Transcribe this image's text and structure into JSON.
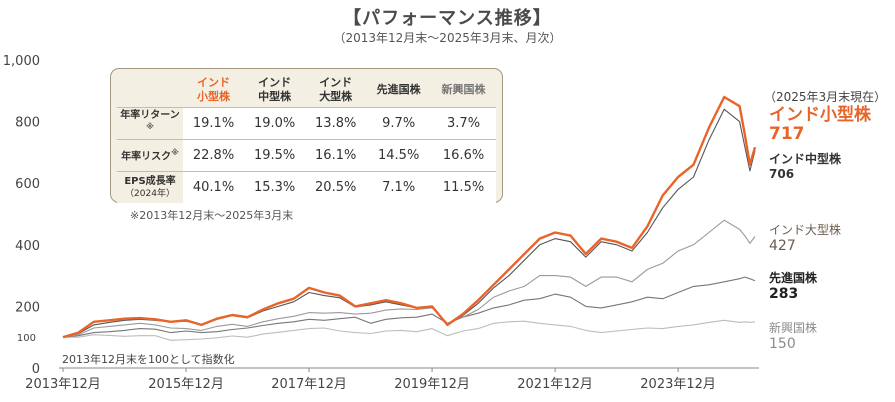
{
  "title": "【パフォーマンス推移】",
  "subtitle": "（2013年12月末～2025年3月末、月次）",
  "as_of_label": "（2025年3月末現在）",
  "note_period": "※2013年12月末～2025年3月末",
  "note_index": "2013年12月末を100として指数化",
  "stats_table": {
    "headers": [
      "インド\n小型株",
      "インド\n中型株",
      "インド\n大型株",
      "先進国株",
      "新興国株"
    ],
    "rows": [
      {
        "label": "年率リターン",
        "mark": "※",
        "sub": "",
        "values": [
          "19.1%",
          "19.0%",
          "13.8%",
          "9.7%",
          "3.7%"
        ]
      },
      {
        "label": "年率リスク",
        "mark": "※",
        "sub": "",
        "values": [
          "22.8%",
          "19.5%",
          "16.1%",
          "14.5%",
          "16.6%"
        ]
      },
      {
        "label": "EPS成長率",
        "mark": "",
        "sub": "（2024年）",
        "values": [
          "40.1%",
          "15.3%",
          "20.5%",
          "7.1%",
          "11.5%"
        ]
      }
    ]
  },
  "end_labels": [
    {
      "name": "インド小型株",
      "value": "717",
      "color": "#e8652a"
    },
    {
      "name": "インド中型株",
      "value": "706",
      "color": "#333333"
    },
    {
      "name": "インド大型株",
      "value": "427",
      "color": "#6b5d4d"
    },
    {
      "name": "先進国株",
      "value": "283",
      "color": "#222222"
    },
    {
      "name": "新興国株",
      "value": "150",
      "color": "#8c8c8c"
    }
  ],
  "chart_data": {
    "type": "line",
    "title": "【パフォーマンス推移】",
    "subtitle": "（2013年12月末～2025年3月末、月次）",
    "x_tick_labels": [
      "2013年12月",
      "2015年12月",
      "2017年12月",
      "2019年12月",
      "2021年12月",
      "2023年12月"
    ],
    "y_ticks": [
      0,
      200,
      400,
      600,
      800,
      1000
    ],
    "y_tick_labels": [
      "0",
      "200",
      "400",
      "600",
      "800",
      "1,000"
    ],
    "y_extra_tick": {
      "value": 100,
      "label": "100"
    },
    "ylim": [
      0,
      1000
    ],
    "xlim": [
      "2013-12",
      "2025-03"
    ],
    "grid": false,
    "series": [
      {
        "name": "インド小型株",
        "color": "#e8652a",
        "points": [
          [
            "2013-12",
            100
          ],
          [
            "2014-03",
            115
          ],
          [
            "2014-06",
            150
          ],
          [
            "2014-09",
            155
          ],
          [
            "2014-12",
            160
          ],
          [
            "2015-03",
            162
          ],
          [
            "2015-06",
            158
          ],
          [
            "2015-09",
            150
          ],
          [
            "2015-12",
            155
          ],
          [
            "2016-03",
            140
          ],
          [
            "2016-06",
            160
          ],
          [
            "2016-09",
            172
          ],
          [
            "2016-12",
            165
          ],
          [
            "2017-03",
            190
          ],
          [
            "2017-06",
            210
          ],
          [
            "2017-09",
            225
          ],
          [
            "2017-12",
            260
          ],
          [
            "2018-03",
            245
          ],
          [
            "2018-06",
            235
          ],
          [
            "2018-09",
            200
          ],
          [
            "2018-12",
            210
          ],
          [
            "2019-03",
            220
          ],
          [
            "2019-06",
            210
          ],
          [
            "2019-09",
            195
          ],
          [
            "2019-12",
            200
          ],
          [
            "2020-03",
            140
          ],
          [
            "2020-06",
            175
          ],
          [
            "2020-09",
            220
          ],
          [
            "2020-12",
            270
          ],
          [
            "2021-03",
            320
          ],
          [
            "2021-06",
            370
          ],
          [
            "2021-09",
            420
          ],
          [
            "2021-12",
            440
          ],
          [
            "2022-03",
            430
          ],
          [
            "2022-06",
            370
          ],
          [
            "2022-09",
            420
          ],
          [
            "2022-12",
            410
          ],
          [
            "2023-03",
            390
          ],
          [
            "2023-06",
            460
          ],
          [
            "2023-09",
            560
          ],
          [
            "2023-12",
            620
          ],
          [
            "2024-03",
            660
          ],
          [
            "2024-06",
            780
          ],
          [
            "2024-09",
            880
          ],
          [
            "2024-12",
            850
          ],
          [
            "2025-01",
            760
          ],
          [
            "2025-02",
            660
          ],
          [
            "2025-03",
            717
          ]
        ]
      },
      {
        "name": "インド中型株",
        "color": "#555555",
        "points": [
          [
            "2013-12",
            100
          ],
          [
            "2014-03",
            112
          ],
          [
            "2014-06",
            140
          ],
          [
            "2014-09",
            148
          ],
          [
            "2014-12",
            155
          ],
          [
            "2015-03",
            158
          ],
          [
            "2015-06",
            155
          ],
          [
            "2015-09",
            150
          ],
          [
            "2015-12",
            152
          ],
          [
            "2016-03",
            142
          ],
          [
            "2016-06",
            158
          ],
          [
            "2016-09",
            170
          ],
          [
            "2016-12",
            163
          ],
          [
            "2017-03",
            185
          ],
          [
            "2017-06",
            200
          ],
          [
            "2017-09",
            215
          ],
          [
            "2017-12",
            245
          ],
          [
            "2018-03",
            235
          ],
          [
            "2018-06",
            228
          ],
          [
            "2018-09",
            198
          ],
          [
            "2018-12",
            205
          ],
          [
            "2019-03",
            215
          ],
          [
            "2019-06",
            205
          ],
          [
            "2019-09",
            195
          ],
          [
            "2019-12",
            198
          ],
          [
            "2020-03",
            140
          ],
          [
            "2020-06",
            170
          ],
          [
            "2020-09",
            210
          ],
          [
            "2020-12",
            260
          ],
          [
            "2021-03",
            300
          ],
          [
            "2021-06",
            350
          ],
          [
            "2021-09",
            400
          ],
          [
            "2021-12",
            420
          ],
          [
            "2022-03",
            410
          ],
          [
            "2022-06",
            360
          ],
          [
            "2022-09",
            410
          ],
          [
            "2022-12",
            400
          ],
          [
            "2023-03",
            380
          ],
          [
            "2023-06",
            440
          ],
          [
            "2023-09",
            520
          ],
          [
            "2023-12",
            580
          ],
          [
            "2024-03",
            620
          ],
          [
            "2024-06",
            740
          ],
          [
            "2024-09",
            840
          ],
          [
            "2024-12",
            800
          ],
          [
            "2025-01",
            720
          ],
          [
            "2025-02",
            640
          ],
          [
            "2025-03",
            706
          ]
        ]
      },
      {
        "name": "インド大型株",
        "color": "#9a9a9a",
        "points": [
          [
            "2013-12",
            100
          ],
          [
            "2014-03",
            108
          ],
          [
            "2014-06",
            130
          ],
          [
            "2014-09",
            135
          ],
          [
            "2014-12",
            140
          ],
          [
            "2015-03",
            145
          ],
          [
            "2015-06",
            140
          ],
          [
            "2015-09",
            130
          ],
          [
            "2015-12",
            128
          ],
          [
            "2016-03",
            122
          ],
          [
            "2016-06",
            135
          ],
          [
            "2016-09",
            142
          ],
          [
            "2016-12",
            135
          ],
          [
            "2017-03",
            150
          ],
          [
            "2017-06",
            160
          ],
          [
            "2017-09",
            168
          ],
          [
            "2017-12",
            180
          ],
          [
            "2018-03",
            178
          ],
          [
            "2018-06",
            180
          ],
          [
            "2018-09",
            175
          ],
          [
            "2018-12",
            178
          ],
          [
            "2019-03",
            188
          ],
          [
            "2019-06",
            192
          ],
          [
            "2019-09",
            190
          ],
          [
            "2019-12",
            195
          ],
          [
            "2020-03",
            145
          ],
          [
            "2020-06",
            165
          ],
          [
            "2020-09",
            190
          ],
          [
            "2020-12",
            230
          ],
          [
            "2021-03",
            250
          ],
          [
            "2021-06",
            265
          ],
          [
            "2021-09",
            300
          ],
          [
            "2021-12",
            300
          ],
          [
            "2022-03",
            295
          ],
          [
            "2022-06",
            265
          ],
          [
            "2022-09",
            295
          ],
          [
            "2022-12",
            295
          ],
          [
            "2023-03",
            280
          ],
          [
            "2023-06",
            320
          ],
          [
            "2023-09",
            340
          ],
          [
            "2023-12",
            380
          ],
          [
            "2024-03",
            400
          ],
          [
            "2024-06",
            440
          ],
          [
            "2024-09",
            480
          ],
          [
            "2024-12",
            450
          ],
          [
            "2025-01",
            430
          ],
          [
            "2025-02",
            405
          ],
          [
            "2025-03",
            427
          ]
        ]
      },
      {
        "name": "先進国株",
        "color": "#777777",
        "points": [
          [
            "2013-12",
            100
          ],
          [
            "2014-03",
            105
          ],
          [
            "2014-06",
            115
          ],
          [
            "2014-09",
            118
          ],
          [
            "2014-12",
            122
          ],
          [
            "2015-03",
            128
          ],
          [
            "2015-06",
            126
          ],
          [
            "2015-09",
            115
          ],
          [
            "2015-12",
            120
          ],
          [
            "2016-03",
            115
          ],
          [
            "2016-06",
            118
          ],
          [
            "2016-09",
            125
          ],
          [
            "2016-12",
            130
          ],
          [
            "2017-03",
            138
          ],
          [
            "2017-06",
            145
          ],
          [
            "2017-09",
            150
          ],
          [
            "2017-12",
            158
          ],
          [
            "2018-03",
            155
          ],
          [
            "2018-06",
            160
          ],
          [
            "2018-09",
            165
          ],
          [
            "2018-12",
            145
          ],
          [
            "2019-03",
            158
          ],
          [
            "2019-06",
            163
          ],
          [
            "2019-09",
            165
          ],
          [
            "2019-12",
            175
          ],
          [
            "2020-03",
            145
          ],
          [
            "2020-06",
            165
          ],
          [
            "2020-09",
            178
          ],
          [
            "2020-12",
            195
          ],
          [
            "2021-03",
            205
          ],
          [
            "2021-06",
            220
          ],
          [
            "2021-09",
            225
          ],
          [
            "2021-12",
            240
          ],
          [
            "2022-03",
            230
          ],
          [
            "2022-06",
            200
          ],
          [
            "2022-09",
            195
          ],
          [
            "2022-12",
            205
          ],
          [
            "2023-03",
            215
          ],
          [
            "2023-06",
            230
          ],
          [
            "2023-09",
            225
          ],
          [
            "2023-12",
            245
          ],
          [
            "2024-03",
            265
          ],
          [
            "2024-06",
            270
          ],
          [
            "2024-09",
            280
          ],
          [
            "2024-12",
            290
          ],
          [
            "2025-01",
            295
          ],
          [
            "2025-02",
            290
          ],
          [
            "2025-03",
            283
          ]
        ]
      },
      {
        "name": "新興国株",
        "color": "#bdbdbd",
        "points": [
          [
            "2013-12",
            100
          ],
          [
            "2014-03",
            100
          ],
          [
            "2014-06",
            108
          ],
          [
            "2014-09",
            106
          ],
          [
            "2014-12",
            103
          ],
          [
            "2015-03",
            105
          ],
          [
            "2015-06",
            105
          ],
          [
            "2015-09",
            90
          ],
          [
            "2015-12",
            92
          ],
          [
            "2016-03",
            94
          ],
          [
            "2016-06",
            98
          ],
          [
            "2016-09",
            104
          ],
          [
            "2016-12",
            100
          ],
          [
            "2017-03",
            110
          ],
          [
            "2017-06",
            116
          ],
          [
            "2017-09",
            122
          ],
          [
            "2017-12",
            128
          ],
          [
            "2018-03",
            130
          ],
          [
            "2018-06",
            120
          ],
          [
            "2018-09",
            115
          ],
          [
            "2018-12",
            112
          ],
          [
            "2019-03",
            120
          ],
          [
            "2019-06",
            122
          ],
          [
            "2019-09",
            118
          ],
          [
            "2019-12",
            128
          ],
          [
            "2020-03",
            105
          ],
          [
            "2020-06",
            120
          ],
          [
            "2020-09",
            128
          ],
          [
            "2020-12",
            145
          ],
          [
            "2021-03",
            150
          ],
          [
            "2021-06",
            152
          ],
          [
            "2021-09",
            145
          ],
          [
            "2021-12",
            140
          ],
          [
            "2022-03",
            135
          ],
          [
            "2022-06",
            122
          ],
          [
            "2022-09",
            115
          ],
          [
            "2022-12",
            120
          ],
          [
            "2023-03",
            125
          ],
          [
            "2023-06",
            130
          ],
          [
            "2023-09",
            128
          ],
          [
            "2023-12",
            135
          ],
          [
            "2024-03",
            140
          ],
          [
            "2024-06",
            148
          ],
          [
            "2024-09",
            155
          ],
          [
            "2024-12",
            148
          ],
          [
            "2025-01",
            150
          ],
          [
            "2025-02",
            148
          ],
          [
            "2025-03",
            150
          ]
        ]
      }
    ]
  }
}
